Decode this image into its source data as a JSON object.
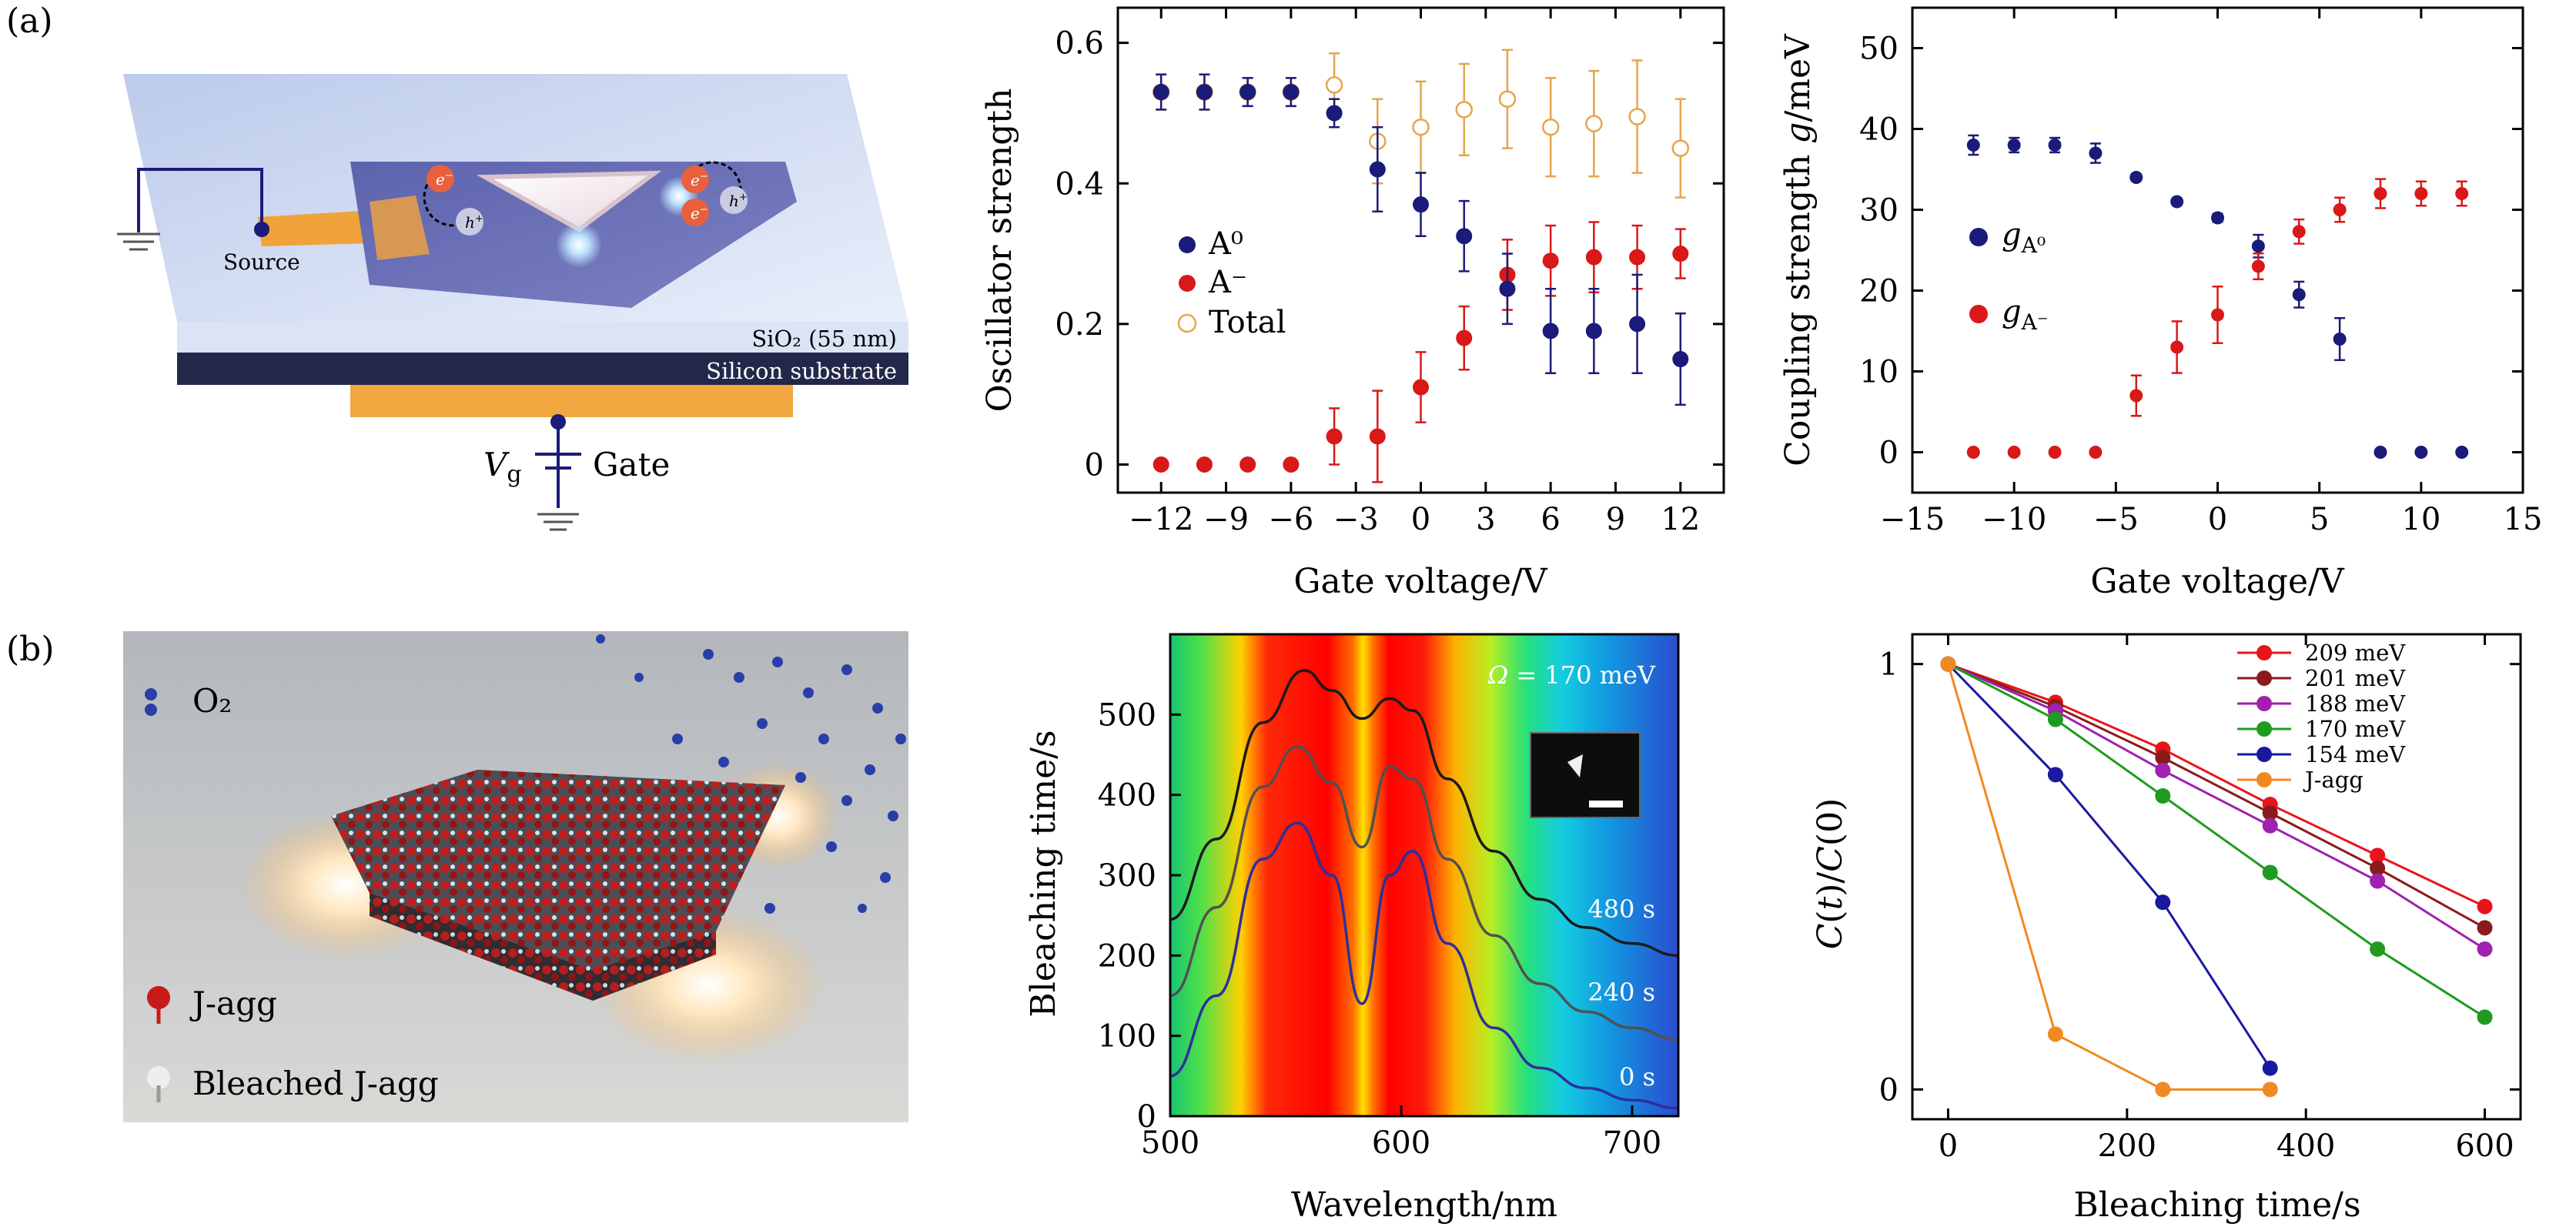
{
  "panel_labels": {
    "a": "(a)",
    "b": "(b)"
  },
  "device": {
    "source": "Source",
    "oxide": "SiO₂ (55 nm)",
    "substrate": "Silicon substrate",
    "vg_main": "V",
    "vg_sub": "g",
    "gate": "Gate",
    "electron": "e",
    "electron_sup": "−",
    "hole": "h",
    "hole_sup": "+"
  },
  "legend_b1": {
    "o2": "O₂",
    "jagg": "J-agg",
    "bleached": "Bleached J-agg"
  },
  "map_text": {
    "omega": "Ω = 170 meV",
    "t480": "480 s",
    "t240": "240 s",
    "t0": "0 s"
  },
  "chart_data": [
    {
      "id": "oscillator",
      "type": "scatter",
      "xlabel": "Gate voltage/V",
      "ylabel": "Oscillator strength",
      "xlim": [
        -14,
        14
      ],
      "ylim": [
        -0.04,
        0.65
      ],
      "xticks": [
        -12,
        -9,
        -6,
        -3,
        0,
        3,
        6,
        9,
        12
      ],
      "xtick_labels": [
        "−12",
        "−9",
        "−6",
        "−3",
        "0",
        "3",
        "6",
        "9",
        "12"
      ],
      "yticks": [
        0,
        0.2,
        0.4,
        0.6
      ],
      "ytick_labels": [
        "0",
        "0.2",
        "0.4",
        "0.6"
      ],
      "legend_position": "left-middle",
      "series": [
        {
          "name": "A⁰",
          "color": "#1b1b7a",
          "marker": "filled",
          "x": [
            -12,
            -10,
            -8,
            -6,
            -4,
            -2,
            0,
            2,
            4,
            6,
            8,
            10,
            12
          ],
          "y": [
            0.53,
            0.53,
            0.53,
            0.53,
            0.5,
            0.42,
            0.37,
            0.325,
            0.25,
            0.19,
            0.19,
            0.2,
            0.15
          ],
          "err": [
            0.025,
            0.025,
            0.02,
            0.02,
            0.02,
            0.06,
            0.045,
            0.05,
            0.05,
            0.06,
            0.06,
            0.07,
            0.065
          ]
        },
        {
          "name": "A⁻",
          "color": "#d91818",
          "marker": "filled",
          "x": [
            -12,
            -10,
            -8,
            -6,
            -4,
            -2,
            0,
            2,
            4,
            6,
            8,
            10,
            12
          ],
          "y": [
            0,
            0,
            0,
            0,
            0.04,
            0.04,
            0.11,
            0.18,
            0.27,
            0.29,
            0.295,
            0.295,
            0.3
          ],
          "err": [
            0,
            0,
            0,
            0,
            0.04,
            0.065,
            0.05,
            0.045,
            0.05,
            0.05,
            0.05,
            0.045,
            0.035
          ]
        },
        {
          "name": "Total",
          "color": "#e5a54b",
          "marker": "open",
          "x": [
            -12,
            -10,
            -8,
            -6,
            -4,
            -2,
            0,
            2,
            4,
            6,
            8,
            10,
            12
          ],
          "y": [
            0.53,
            0.53,
            0.53,
            0.53,
            0.54,
            0.46,
            0.48,
            0.505,
            0.52,
            0.48,
            0.485,
            0.495,
            0.45
          ],
          "err": [
            0.025,
            0.025,
            0.02,
            0.02,
            0.045,
            0.06,
            0.065,
            0.065,
            0.07,
            0.07,
            0.075,
            0.08,
            0.07
          ]
        }
      ]
    },
    {
      "id": "coupling",
      "type": "scatter",
      "xlabel": "Gate voltage/V",
      "ylabel_main": "Coupling strength ",
      "ylabel_italic": "g",
      "ylabel_tail": "/meV",
      "xlim": [
        -15,
        15
      ],
      "ylim": [
        -5,
        55
      ],
      "xticks": [
        -15,
        -10,
        -5,
        0,
        5,
        10,
        15
      ],
      "xtick_labels": [
        "−15",
        "−10",
        "−5",
        "0",
        "5",
        "10",
        "15"
      ],
      "yticks": [
        0,
        10,
        20,
        30,
        40,
        50
      ],
      "ytick_labels": [
        "0",
        "10",
        "20",
        "30",
        "40",
        "50"
      ],
      "legend_position": "left-middle",
      "legend_g": "g",
      "series": [
        {
          "name": "A⁰",
          "color": "#1b1b7a",
          "x": [
            -12,
            -10,
            -8,
            -6,
            -4,
            -2,
            0,
            2,
            4,
            6,
            8,
            10,
            12
          ],
          "y": [
            38,
            38,
            38,
            37,
            34,
            31,
            29,
            25.5,
            19.5,
            14,
            0,
            0,
            0
          ],
          "err": [
            1.2,
            0.9,
            0.9,
            1.2,
            0.4,
            0.4,
            0.5,
            1.4,
            1.6,
            2.6,
            0,
            0,
            0
          ]
        },
        {
          "name": "A⁻",
          "color": "#d91818",
          "x": [
            -12,
            -10,
            -8,
            -6,
            -4,
            -2,
            0,
            2,
            4,
            6,
            8,
            10,
            12
          ],
          "y": [
            0,
            0,
            0,
            0,
            7,
            13,
            17,
            23,
            27.3,
            30,
            32,
            32,
            32
          ],
          "err": [
            0,
            0,
            0,
            0,
            2.5,
            3.2,
            3.5,
            1.6,
            1.5,
            1.5,
            1.8,
            1.5,
            1.5
          ]
        }
      ]
    },
    {
      "id": "scattering_map",
      "type": "heatmap",
      "xlabel": "Wavelength/nm",
      "ylabel": "Bleaching time/s",
      "xlim": [
        500,
        720
      ],
      "ylim": [
        0,
        600
      ],
      "xticks": [
        500,
        600,
        700
      ],
      "xtick_labels": [
        "500",
        "600",
        "700"
      ],
      "yticks": [
        0,
        100,
        200,
        300,
        400,
        500
      ],
      "ytick_labels": [
        "0",
        "100",
        "200",
        "300",
        "400",
        "500"
      ],
      "colormap": [
        "#2a3cc8",
        "#11a0e0",
        "#16cfd0",
        "#2ee36a",
        "#b8ee20",
        "#ffd800",
        "#ff7a00",
        "#ff1a0a",
        "#ff0000"
      ],
      "spectra": [
        {
          "label": "0 s",
          "color": "#2f2f9a",
          "x": [
            500,
            520,
            540,
            555,
            570,
            583,
            595,
            605,
            620,
            640,
            660,
            680,
            700,
            720
          ],
          "y": [
            50,
            150,
            320,
            365,
            300,
            140,
            300,
            330,
            215,
            110,
            60,
            35,
            20,
            10
          ]
        },
        {
          "label": "240 s",
          "color": "#505050",
          "x": [
            500,
            520,
            540,
            555,
            570,
            583,
            595,
            605,
            620,
            640,
            660,
            680,
            700,
            720
          ],
          "y": [
            150,
            260,
            410,
            460,
            415,
            335,
            435,
            420,
            320,
            225,
            165,
            130,
            110,
            95
          ]
        },
        {
          "label": "480 s",
          "color": "#1a1a1a",
          "x": [
            500,
            520,
            540,
            558,
            570,
            583,
            595,
            605,
            620,
            640,
            660,
            680,
            700,
            720
          ],
          "y": [
            245,
            345,
            490,
            555,
            530,
            495,
            520,
            505,
            420,
            330,
            270,
            235,
            215,
            200
          ]
        }
      ]
    },
    {
      "id": "bleaching",
      "type": "line",
      "xlabel": "Bleaching time/s",
      "ylabel": "C(t)/C(0)",
      "xlim": [
        -40,
        640
      ],
      "ylim": [
        -0.07,
        1.07
      ],
      "xticks": [
        0,
        200,
        400,
        600
      ],
      "xtick_labels": [
        "0",
        "200",
        "400",
        "600"
      ],
      "yticks": [
        0,
        1
      ],
      "ytick_labels": [
        "0",
        "1"
      ],
      "legend_position": "top-right",
      "series": [
        {
          "name": "209 meV",
          "color": "#e8141c",
          "x": [
            0,
            120,
            240,
            360,
            480,
            600
          ],
          "y": [
            1,
            0.91,
            0.8,
            0.67,
            0.55,
            0.43
          ]
        },
        {
          "name": "201 meV",
          "color": "#8b1a1a",
          "x": [
            0,
            120,
            240,
            360,
            480,
            600
          ],
          "y": [
            1,
            0.9,
            0.78,
            0.65,
            0.52,
            0.38
          ]
        },
        {
          "name": "188 meV",
          "color": "#a020b0",
          "x": [
            0,
            120,
            240,
            360,
            480,
            600
          ],
          "y": [
            1,
            0.89,
            0.75,
            0.62,
            0.49,
            0.33
          ]
        },
        {
          "name": "170 meV",
          "color": "#1f9b1f",
          "x": [
            0,
            120,
            240,
            360,
            480,
            600
          ],
          "y": [
            1,
            0.87,
            0.69,
            0.51,
            0.33,
            0.17
          ]
        },
        {
          "name": "154 meV",
          "color": "#1a1aa0",
          "x": [
            0,
            120,
            240,
            360
          ],
          "y": [
            1,
            0.74,
            0.44,
            0.05
          ]
        },
        {
          "name": "J-agg",
          "color": "#f08a20",
          "x": [
            0,
            120,
            240,
            360
          ],
          "y": [
            1,
            0.13,
            0,
            0
          ]
        }
      ]
    }
  ]
}
